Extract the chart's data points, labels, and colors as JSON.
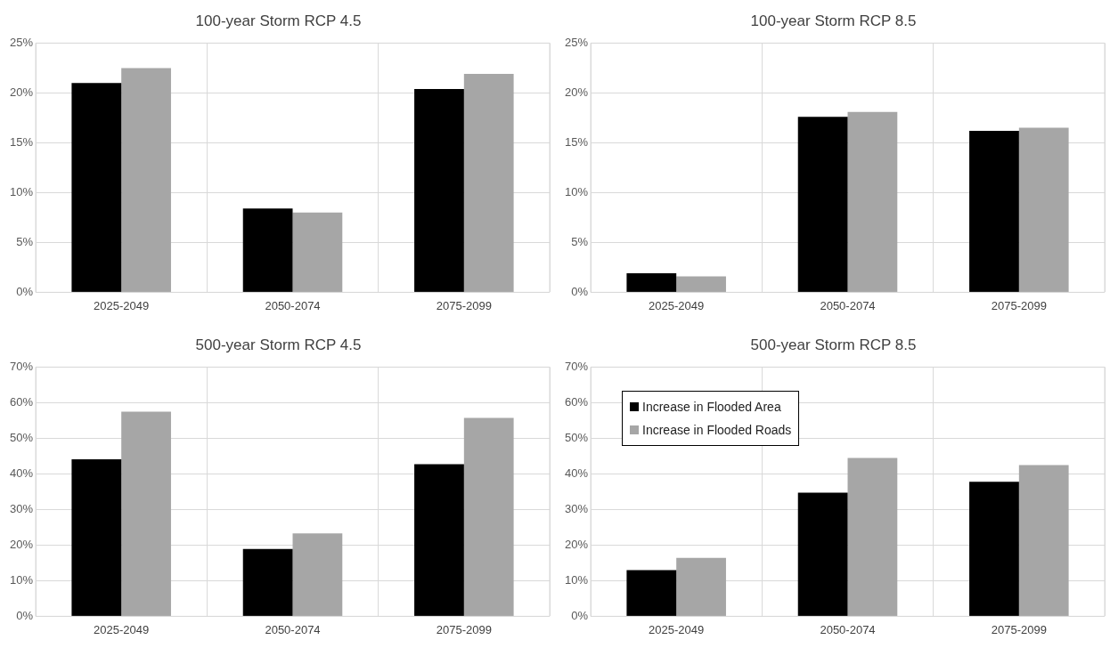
{
  "chart_data": [
    {
      "type": "bar",
      "title": "100-year Storm RCP 4.5",
      "categories": [
        "2025-2049",
        "2050-2074",
        "2075-2099"
      ],
      "series": [
        {
          "color": "#000000",
          "values": [
            21.0,
            8.4,
            20.4
          ]
        },
        {
          "color": "#a6a6a6",
          "values": [
            22.5,
            8.0,
            21.9
          ]
        }
      ],
      "ylim": [
        0,
        25
      ],
      "yticks": [
        {
          "value": 0,
          "label": "0%"
        },
        {
          "value": 5,
          "label": "5%"
        },
        {
          "value": 10,
          "label": "10%"
        },
        {
          "value": 15,
          "label": "15%"
        },
        {
          "value": 20,
          "label": "20%"
        },
        {
          "value": 25,
          "label": "25%"
        }
      ],
      "grid": true
    },
    {
      "type": "bar",
      "title": "100-year Storm RCP 8.5",
      "categories": [
        "2025-2049",
        "2050-2074",
        "2075-2099"
      ],
      "series": [
        {
          "color": "#000000",
          "values": [
            1.9,
            17.6,
            16.2
          ]
        },
        {
          "color": "#a6a6a6",
          "values": [
            1.6,
            18.1,
            16.5
          ]
        }
      ],
      "ylim": [
        0,
        25
      ],
      "yticks": [
        {
          "value": 0,
          "label": "0%"
        },
        {
          "value": 5,
          "label": "5%"
        },
        {
          "value": 10,
          "label": "10%"
        },
        {
          "value": 15,
          "label": "15%"
        },
        {
          "value": 20,
          "label": "20%"
        },
        {
          "value": 25,
          "label": "25%"
        }
      ],
      "grid": true
    },
    {
      "type": "bar",
      "title": "500-year Storm RCP 4.5",
      "categories": [
        "2025-2049",
        "2050-2074",
        "2075-2099"
      ],
      "series": [
        {
          "color": "#000000",
          "values": [
            44.1,
            18.9,
            42.7
          ]
        },
        {
          "color": "#a6a6a6",
          "values": [
            57.5,
            23.3,
            55.7
          ]
        }
      ],
      "ylim": [
        0,
        70
      ],
      "yticks": [
        {
          "value": 0,
          "label": "0%"
        },
        {
          "value": 10,
          "label": "10%"
        },
        {
          "value": 20,
          "label": "20%"
        },
        {
          "value": 30,
          "label": "30%"
        },
        {
          "value": 40,
          "label": "40%"
        },
        {
          "value": 50,
          "label": "50%"
        },
        {
          "value": 60,
          "label": "60%"
        },
        {
          "value": 70,
          "label": "70%"
        }
      ],
      "grid": true
    },
    {
      "type": "bar",
      "title": "500-year Storm RCP 8.5",
      "categories": [
        "2025-2049",
        "2050-2074",
        "2075-2099"
      ],
      "series": [
        {
          "name": "Increase in Flooded Area",
          "color": "#000000",
          "values": [
            13.0,
            34.7,
            37.8
          ]
        },
        {
          "name": "Increase in Flooded Roads",
          "color": "#a6a6a6",
          "values": [
            16.4,
            44.5,
            42.5
          ]
        }
      ],
      "ylim": [
        0,
        70
      ],
      "yticks": [
        {
          "value": 0,
          "label": "0%"
        },
        {
          "value": 10,
          "label": "10%"
        },
        {
          "value": 20,
          "label": "20%"
        },
        {
          "value": 30,
          "label": "30%"
        },
        {
          "value": 40,
          "label": "40%"
        },
        {
          "value": 50,
          "label": "50%"
        },
        {
          "value": 60,
          "label": "60%"
        },
        {
          "value": 70,
          "label": "70%"
        }
      ],
      "grid": true,
      "legend": "top left"
    }
  ]
}
